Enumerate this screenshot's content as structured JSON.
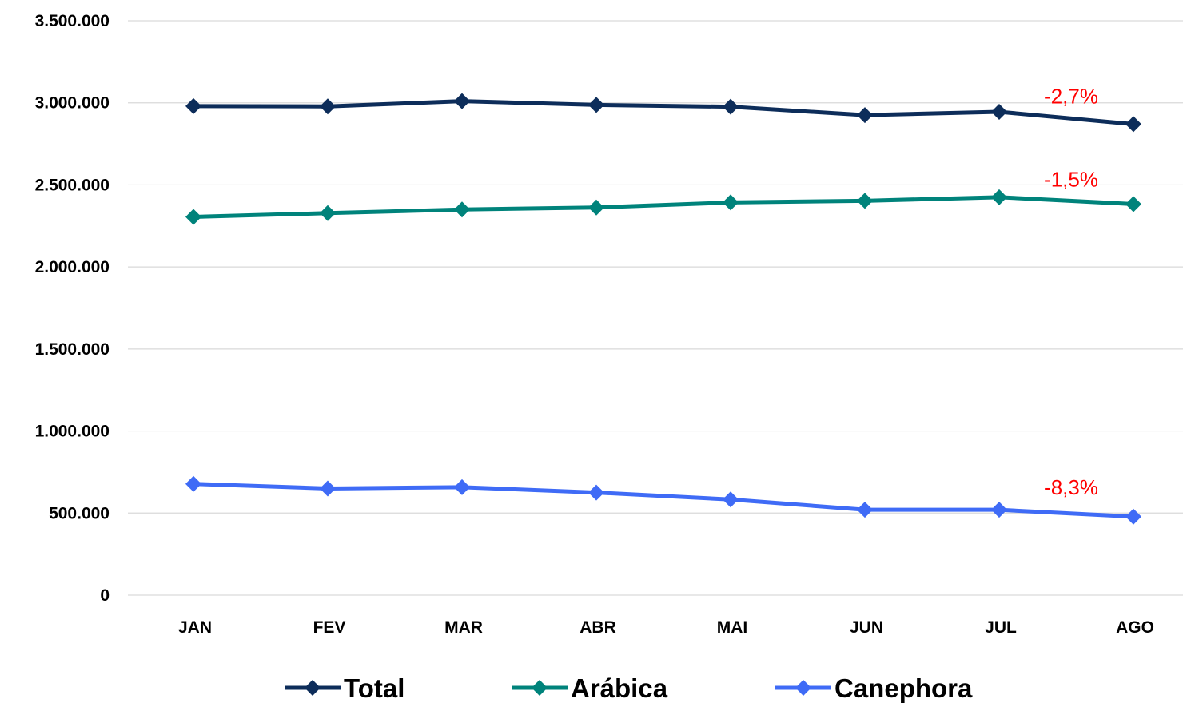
{
  "chart_data": {
    "type": "line",
    "categories": [
      "JAN",
      "FEV",
      "MAR",
      "ABR",
      "MAI",
      "JUN",
      "JUL",
      "AGO"
    ],
    "ylim": [
      0,
      3500000
    ],
    "yticks": [
      0,
      500000,
      1000000,
      1500000,
      2000000,
      2500000,
      3000000,
      3500000
    ],
    "ytick_labels": [
      "0",
      "500.000",
      "1.000.000",
      "1.500.000",
      "2.000.000",
      "2.500.000",
      "3.000.000",
      "3.500.000"
    ],
    "grid": true,
    "legend_position": "bottom",
    "series": [
      {
        "name": "Total",
        "color": "#0d2d5a",
        "values": [
          2980000,
          2978000,
          3010000,
          2987000,
          2976000,
          2925000,
          2945000,
          2870000
        ],
        "annotation": "-2,7%"
      },
      {
        "name": "Arábica",
        "color": "#00837b",
        "values": [
          2305000,
          2328000,
          2350000,
          2362000,
          2393000,
          2403000,
          2425000,
          2383000
        ],
        "annotation": "-1,5%"
      },
      {
        "name": "Canephora",
        "color": "#3f6bf6",
        "values": [
          678000,
          650000,
          658000,
          625000,
          583000,
          520000,
          520000,
          478000
        ],
        "annotation": "-8,3%"
      }
    ]
  }
}
